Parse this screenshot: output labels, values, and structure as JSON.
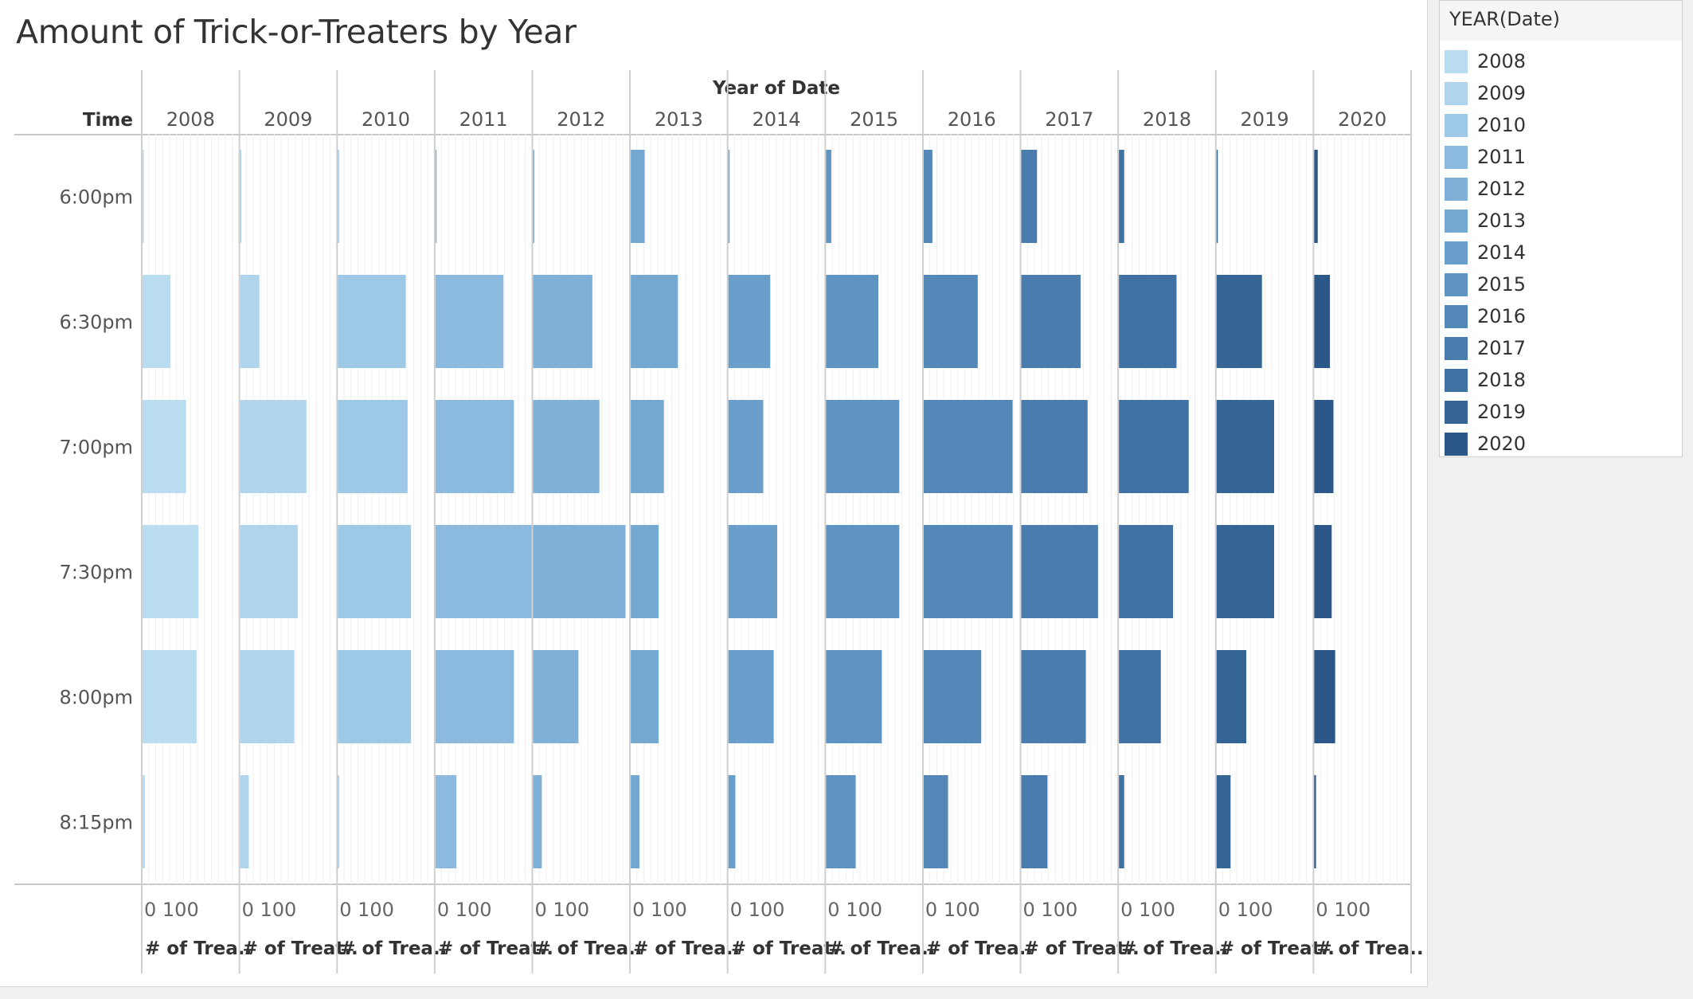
{
  "chart_data": {
    "type": "bar",
    "title": "Amount of Trick-or-Treaters by Year",
    "column_header": "Year of Date",
    "row_header": "Time",
    "legend_title": "YEAR(Date)",
    "legend_placement": "right",
    "xlabel": "# of Trea..",
    "x_axis_ticks": [
      "0",
      "100"
    ],
    "xlim": [
      0,
      280
    ],
    "categories": [
      "6:00pm",
      "6:30pm",
      "7:00pm",
      "7:30pm",
      "8:00pm",
      "8:15pm"
    ],
    "series": [
      {
        "name": "2008",
        "color": "#b9dcf0",
        "values": [
          1,
          80,
          125,
          160,
          155,
          7
        ],
        "x_axis_title": "# of Trea.."
      },
      {
        "name": "2009",
        "color": "#afd4ec",
        "values": [
          1,
          55,
          190,
          165,
          155,
          25
        ],
        "x_axis_title": "# of Treat.."
      },
      {
        "name": "2010",
        "color": "#9ec9e6",
        "values": [
          2,
          195,
          200,
          210,
          210,
          2
        ],
        "x_axis_title": "# of Trea.."
      },
      {
        "name": "2011",
        "color": "#8cbadf",
        "values": [
          2,
          195,
          225,
          290,
          225,
          60
        ],
        "x_axis_title": "# of Treat.."
      },
      {
        "name": "2012",
        "color": "#7fb0d8",
        "values": [
          2,
          170,
          190,
          265,
          130,
          25
        ],
        "x_axis_title": "# of Trea.."
      },
      {
        "name": "2013",
        "color": "#74a8d1",
        "values": [
          40,
          135,
          95,
          80,
          80,
          25
        ],
        "x_axis_title": "# of Trea.."
      },
      {
        "name": "2014",
        "color": "#6a9ecb",
        "values": [
          1,
          120,
          100,
          140,
          130,
          20
        ],
        "x_axis_title": "# of Treat.."
      },
      {
        "name": "2015",
        "color": "#5f94c2",
        "values": [
          15,
          150,
          210,
          210,
          160,
          85
        ],
        "x_axis_title": "# of Trea.."
      },
      {
        "name": "2016",
        "color": "#5488b9",
        "values": [
          25,
          155,
          255,
          255,
          165,
          70
        ],
        "x_axis_title": "# of Trea.."
      },
      {
        "name": "2017",
        "color": "#4a7dae",
        "values": [
          45,
          170,
          190,
          220,
          185,
          75
        ],
        "x_axis_title": "# of Treat.."
      },
      {
        "name": "2018",
        "color": "#3f72a3",
        "values": [
          15,
          165,
          200,
          155,
          120,
          15
        ],
        "x_axis_title": "# of Trea.."
      },
      {
        "name": "2019",
        "color": "#356595",
        "values": [
          2,
          130,
          165,
          165,
          85,
          40
        ],
        "x_axis_title": "# of Treat.."
      },
      {
        "name": "2020",
        "color": "#2c5889",
        "values": [
          10,
          45,
          55,
          50,
          60,
          5
        ],
        "x_axis_title": "# of Trea.."
      }
    ]
  }
}
